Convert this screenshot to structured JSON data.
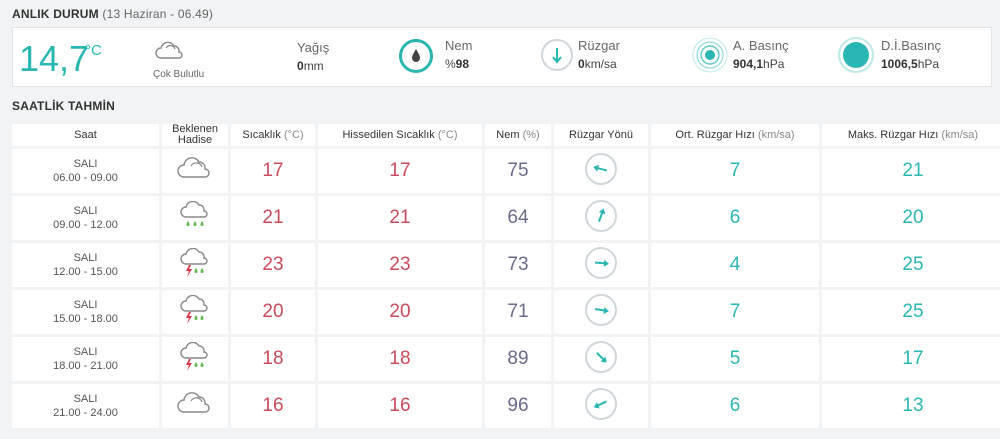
{
  "current": {
    "title": "ANLIK DURUM",
    "subtitle": "(13 Haziran - 06.49)",
    "temperature": "14,7",
    "temperature_unit": "°C",
    "condition": "Çok Bulutlu",
    "condition_icon": "cloud-icon",
    "rain": {
      "label": "Yağış",
      "value": "0",
      "unit": "mm"
    },
    "humidity": {
      "label": "Nem",
      "prefix": "%",
      "value": "98"
    },
    "wind": {
      "label": "Rüzgar",
      "value": "0",
      "unit": "km/sa"
    },
    "pressure": {
      "label": "A. Basınç",
      "value": "904,1",
      "unit": "hPa"
    },
    "sea_pressure": {
      "label": "D.İ.Basınç",
      "value": "1006,5",
      "unit": "hPa"
    },
    "accent_color": "#2ab6b3"
  },
  "hourly": {
    "title": "SAATLİK TAHMİN",
    "headers": {
      "time": "Saat",
      "event_line1": "Beklenen",
      "event_line2": "Hadise",
      "temp": "Sıcaklık",
      "temp_unit": "(°C)",
      "feels": "Hissedilen Sıcaklık",
      "feels_unit": "(°C)",
      "humidity": "Nem",
      "humidity_unit": "(%)",
      "direction": "Rüzgar Yönü",
      "avg_wind": "Ort. Rüzgar Hızı",
      "avg_wind_unit": "(km/sa)",
      "max_wind": "Maks. Rüzgar Hızı",
      "max_wind_unit": "(km/sa)"
    },
    "rows": [
      {
        "day": "SALI",
        "time": "06.00 - 09.00",
        "icon": "cloud-icon",
        "temp": "17",
        "feels": "17",
        "humidity": "75",
        "dir_angle": 285,
        "avg_wind": "7",
        "max_wind": "21"
      },
      {
        "day": "SALI",
        "time": "09.00 - 12.00",
        "icon": "rain-cloud-icon",
        "temp": "21",
        "feels": "21",
        "humidity": "64",
        "dir_angle": 20,
        "avg_wind": "6",
        "max_wind": "20"
      },
      {
        "day": "SALI",
        "time": "12.00 - 15.00",
        "icon": "thunder-rain-icon",
        "temp": "23",
        "feels": "23",
        "humidity": "73",
        "dir_angle": 95,
        "avg_wind": "4",
        "max_wind": "25"
      },
      {
        "day": "SALI",
        "time": "15.00 - 18.00",
        "icon": "thunder-rain-icon",
        "temp": "20",
        "feels": "20",
        "humidity": "71",
        "dir_angle": 100,
        "avg_wind": "7",
        "max_wind": "25"
      },
      {
        "day": "SALI",
        "time": "18.00 - 21.00",
        "icon": "thunder-rain-icon",
        "temp": "18",
        "feels": "18",
        "humidity": "89",
        "dir_angle": 135,
        "avg_wind": "5",
        "max_wind": "17"
      },
      {
        "day": "SALI",
        "time": "21.00 - 24.00",
        "icon": "cloud-icon",
        "temp": "16",
        "feels": "16",
        "humidity": "96",
        "dir_angle": 245,
        "avg_wind": "6",
        "max_wind": "13"
      }
    ]
  }
}
